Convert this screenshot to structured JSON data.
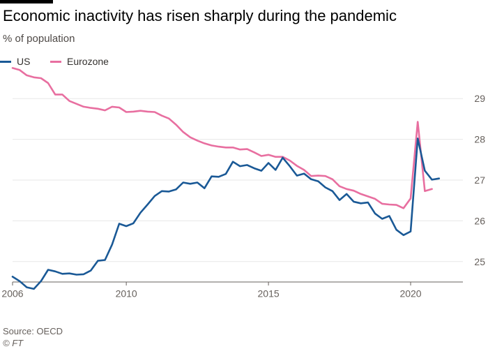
{
  "header": {
    "title": "Economic inactivity has risen sharply during the pandemic",
    "subtitle": "% of population"
  },
  "footer": {
    "source": "Source: OECD",
    "credit": "© FT"
  },
  "colors": {
    "us": "#1a5996",
    "eurozone": "#e86fa0",
    "grid": "#e7e7e7",
    "tick": "#66605c"
  },
  "chart_data": {
    "type": "line",
    "title": "Economic inactivity has risen sharply during the pandemic",
    "ylabel": "% of population",
    "xlabel": "",
    "xlim": [
      2006.0,
      2021.25
    ],
    "ylim": [
      24.5,
      29.5
    ],
    "x_ticks": [
      2006,
      2010,
      2015,
      2020
    ],
    "y_ticks": [
      25,
      26,
      27,
      28,
      29
    ],
    "grid": true,
    "legend_position": "top-left",
    "series": [
      {
        "name": "US",
        "color": "#1a5996",
        "points": [
          [
            2006.0,
            24.63
          ],
          [
            2006.25,
            24.52
          ],
          [
            2006.5,
            24.37
          ],
          [
            2006.75,
            24.33
          ],
          [
            2007.0,
            24.52
          ],
          [
            2007.25,
            24.8
          ],
          [
            2007.5,
            24.76
          ],
          [
            2007.75,
            24.7
          ],
          [
            2008.0,
            24.71
          ],
          [
            2008.25,
            24.68
          ],
          [
            2008.5,
            24.69
          ],
          [
            2008.75,
            24.78
          ],
          [
            2009.0,
            25.02
          ],
          [
            2009.25,
            25.04
          ],
          [
            2009.5,
            25.42
          ],
          [
            2009.75,
            25.93
          ],
          [
            2010.0,
            25.87
          ],
          [
            2010.25,
            25.94
          ],
          [
            2010.5,
            26.2
          ],
          [
            2010.75,
            26.4
          ],
          [
            2011.0,
            26.61
          ],
          [
            2011.25,
            26.73
          ],
          [
            2011.5,
            26.72
          ],
          [
            2011.75,
            26.77
          ],
          [
            2012.0,
            26.94
          ],
          [
            2012.25,
            26.91
          ],
          [
            2012.5,
            26.94
          ],
          [
            2012.75,
            26.8
          ],
          [
            2013.0,
            27.09
          ],
          [
            2013.25,
            27.08
          ],
          [
            2013.5,
            27.15
          ],
          [
            2013.75,
            27.45
          ],
          [
            2014.0,
            27.34
          ],
          [
            2014.25,
            27.37
          ],
          [
            2014.5,
            27.29
          ],
          [
            2014.75,
            27.23
          ],
          [
            2015.0,
            27.42
          ],
          [
            2015.25,
            27.25
          ],
          [
            2015.5,
            27.55
          ],
          [
            2015.75,
            27.34
          ],
          [
            2016.0,
            27.11
          ],
          [
            2016.25,
            27.16
          ],
          [
            2016.5,
            27.02
          ],
          [
            2016.75,
            26.97
          ],
          [
            2017.0,
            26.82
          ],
          [
            2017.25,
            26.73
          ],
          [
            2017.5,
            26.51
          ],
          [
            2017.75,
            26.66
          ],
          [
            2018.0,
            26.47
          ],
          [
            2018.25,
            26.43
          ],
          [
            2018.5,
            26.45
          ],
          [
            2018.75,
            26.18
          ],
          [
            2019.0,
            26.05
          ],
          [
            2019.25,
            26.12
          ],
          [
            2019.5,
            25.78
          ],
          [
            2019.75,
            25.65
          ],
          [
            2020.0,
            25.74
          ],
          [
            2020.25,
            28.02
          ],
          [
            2020.5,
            27.23
          ],
          [
            2020.75,
            27.01
          ],
          [
            2021.0,
            27.04
          ]
        ]
      },
      {
        "name": "Eurozone",
        "color": "#e86fa0",
        "points": [
          [
            2006.0,
            29.75
          ],
          [
            2006.25,
            29.7
          ],
          [
            2006.5,
            29.57
          ],
          [
            2006.75,
            29.52
          ],
          [
            2007.0,
            29.5
          ],
          [
            2007.25,
            29.38
          ],
          [
            2007.5,
            29.1
          ],
          [
            2007.75,
            29.1
          ],
          [
            2008.0,
            28.94
          ],
          [
            2008.25,
            28.87
          ],
          [
            2008.5,
            28.8
          ],
          [
            2008.75,
            28.77
          ],
          [
            2009.0,
            28.75
          ],
          [
            2009.25,
            28.71
          ],
          [
            2009.5,
            28.8
          ],
          [
            2009.75,
            28.78
          ],
          [
            2010.0,
            28.67
          ],
          [
            2010.25,
            28.68
          ],
          [
            2010.5,
            28.7
          ],
          [
            2010.75,
            28.68
          ],
          [
            2011.0,
            28.67
          ],
          [
            2011.25,
            28.58
          ],
          [
            2011.5,
            28.51
          ],
          [
            2011.75,
            28.36
          ],
          [
            2012.0,
            28.18
          ],
          [
            2012.25,
            28.05
          ],
          [
            2012.5,
            27.97
          ],
          [
            2012.75,
            27.9
          ],
          [
            2013.0,
            27.85
          ],
          [
            2013.25,
            27.82
          ],
          [
            2013.5,
            27.8
          ],
          [
            2013.75,
            27.8
          ],
          [
            2014.0,
            27.75
          ],
          [
            2014.25,
            27.76
          ],
          [
            2014.5,
            27.68
          ],
          [
            2014.75,
            27.59
          ],
          [
            2015.0,
            27.62
          ],
          [
            2015.25,
            27.57
          ],
          [
            2015.5,
            27.57
          ],
          [
            2015.75,
            27.48
          ],
          [
            2016.0,
            27.35
          ],
          [
            2016.25,
            27.25
          ],
          [
            2016.5,
            27.1
          ],
          [
            2016.75,
            27.11
          ],
          [
            2017.0,
            27.1
          ],
          [
            2017.25,
            27.02
          ],
          [
            2017.5,
            26.85
          ],
          [
            2017.75,
            26.78
          ],
          [
            2018.0,
            26.74
          ],
          [
            2018.25,
            26.66
          ],
          [
            2018.5,
            26.6
          ],
          [
            2018.75,
            26.54
          ],
          [
            2019.0,
            26.42
          ],
          [
            2019.25,
            26.4
          ],
          [
            2019.5,
            26.39
          ],
          [
            2019.75,
            26.31
          ],
          [
            2020.0,
            26.55
          ],
          [
            2020.25,
            28.43
          ],
          [
            2020.5,
            26.73
          ],
          [
            2020.75,
            26.78
          ]
        ]
      }
    ]
  }
}
